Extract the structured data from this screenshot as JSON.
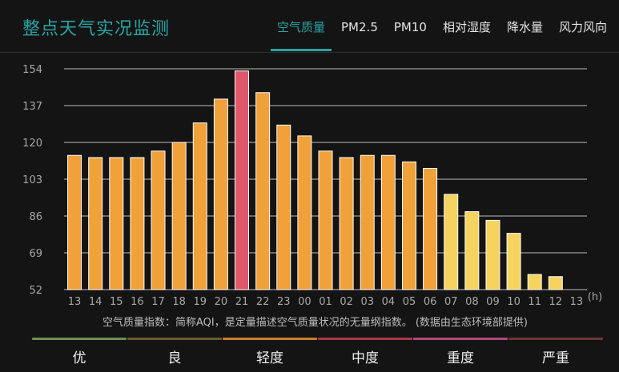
{
  "header": {
    "title": "整点天气实况监测",
    "tabs": [
      {
        "label": "空气质量",
        "active": true
      },
      {
        "label": "PM2.5",
        "active": false
      },
      {
        "label": "PM10",
        "active": false
      },
      {
        "label": "相对湿度",
        "active": false
      },
      {
        "label": "降水量",
        "active": false
      },
      {
        "label": "风力风向",
        "active": false
      }
    ]
  },
  "chart_data": {
    "type": "bar",
    "categories": [
      "13",
      "14",
      "15",
      "16",
      "17",
      "18",
      "19",
      "20",
      "21",
      "22",
      "23",
      "00",
      "01",
      "02",
      "03",
      "04",
      "05",
      "06",
      "07",
      "08",
      "09",
      "10",
      "11",
      "12",
      "13"
    ],
    "values": [
      114,
      113,
      113,
      113,
      116,
      120,
      129,
      140,
      153,
      143,
      128,
      123,
      116,
      113,
      114,
      114,
      111,
      108,
      96,
      88,
      84,
      78,
      59,
      58,
      null
    ],
    "bar_colors": [
      "#f0a13a",
      "#f0a13a",
      "#f0a13a",
      "#f0a13a",
      "#f0a13a",
      "#f0a13a",
      "#f0a13a",
      "#f0a13a",
      "#e0566a",
      "#f0a13a",
      "#f0a13a",
      "#f0a13a",
      "#f0a13a",
      "#f0a13a",
      "#f0a13a",
      "#f0a13a",
      "#f0a13a",
      "#f0a13a",
      "#f6d35f",
      "#f6d35f",
      "#f6d35f",
      "#f6d35f",
      "#f6d35f",
      "#f6d35f",
      "#f6d35f"
    ],
    "yticks": [
      52,
      69,
      86,
      103,
      120,
      137,
      154
    ],
    "ylim": [
      52,
      154
    ],
    "xunit": "(h)",
    "grid": true
  },
  "note": "空气质量指数：简称AQI，是定量描述空气质量状况的无量纲指数。  (数据由生态环境部提供)",
  "legend": [
    {
      "label": "优",
      "color": "#6b8f55"
    },
    {
      "label": "良",
      "color": "#6b5a32"
    },
    {
      "label": "轻度",
      "color": "#c9822e"
    },
    {
      "label": "中度",
      "color": "#a83a45"
    },
    {
      "label": "重度",
      "color": "#b04a7a"
    },
    {
      "label": "严重",
      "color": "#6e3636"
    }
  ]
}
